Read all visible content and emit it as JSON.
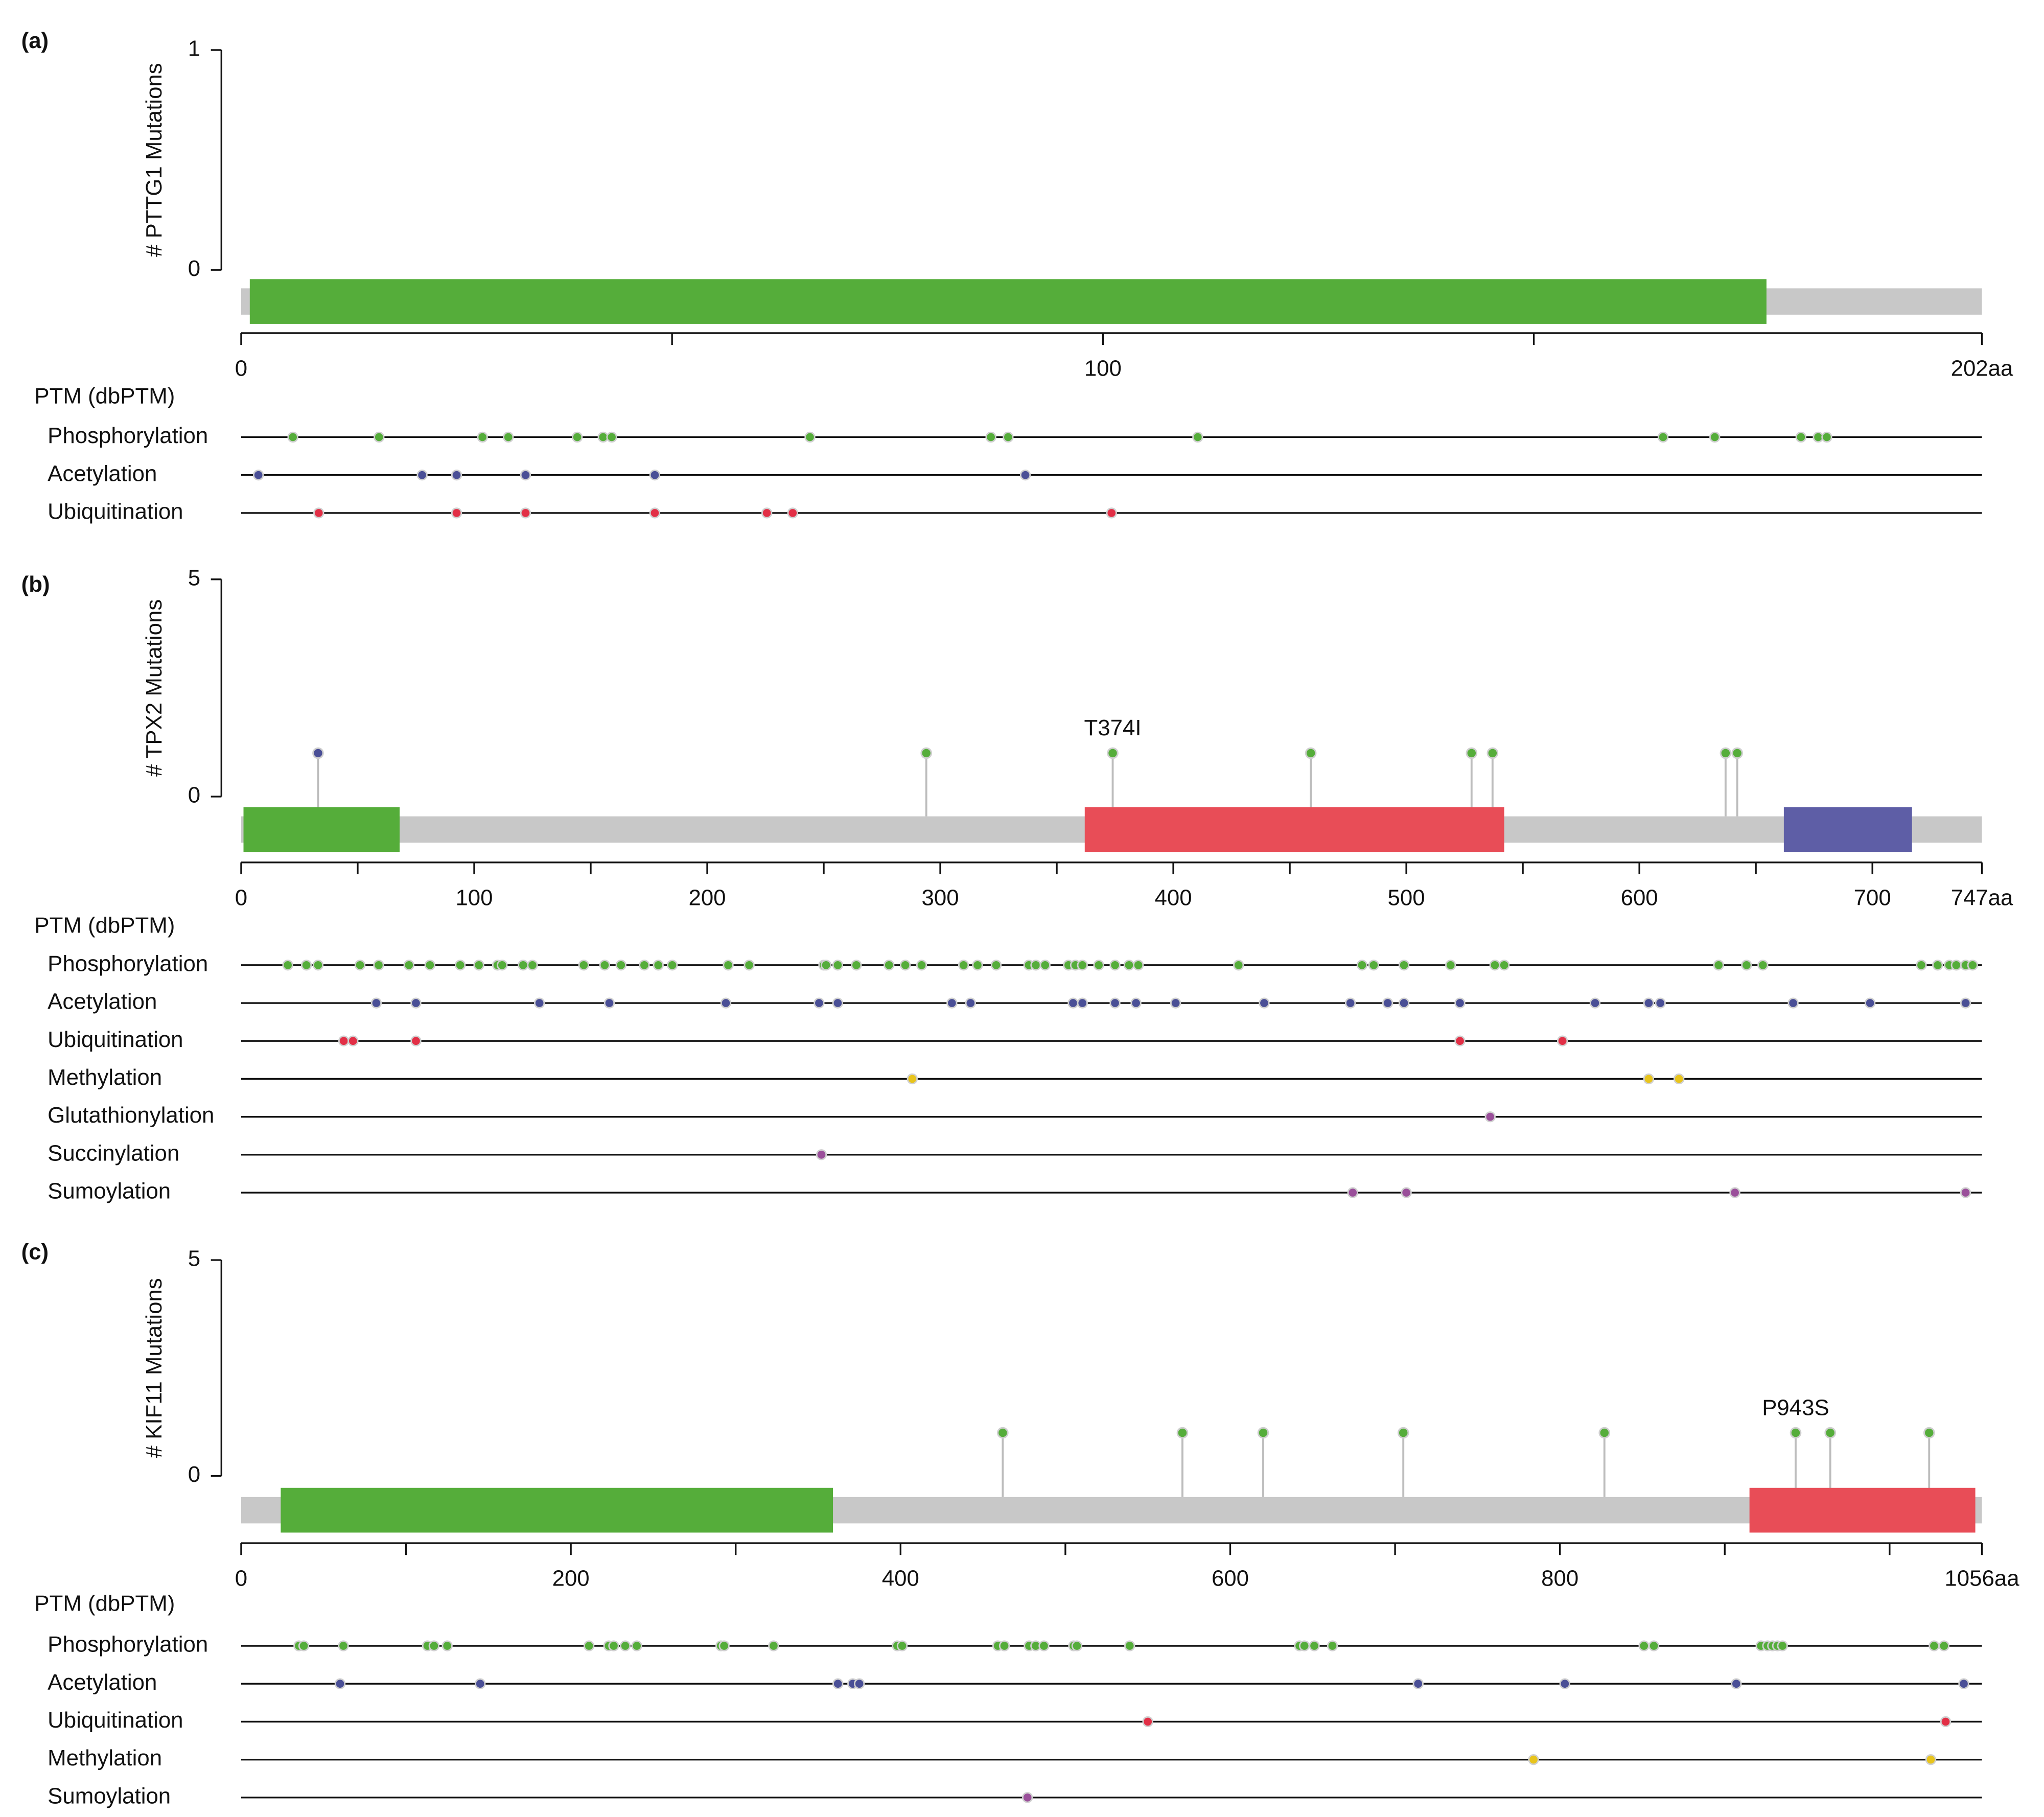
{
  "chart_data": [
    {
      "type": "lollipop",
      "panel_label": "(a)",
      "y_label": "# PTTG1 Mutations",
      "ylim": [
        0,
        1
      ],
      "yticks": [
        0,
        1
      ],
      "xlim": [
        0,
        202
      ],
      "xticks": [
        0,
        100,
        {
          "value": 202,
          "label": "202aa"
        }
      ],
      "xminorticks": [
        50,
        150
      ],
      "protein_color": "#c8c8c8",
      "domains": [
        {
          "start": 1,
          "end": 177,
          "color": "#55ad3a"
        }
      ],
      "mutations": [],
      "ptm_title": "PTM (dbPTM)",
      "ptm": [
        {
          "name": "Phosphorylation",
          "color": "#55ad3a",
          "positions": [
            6,
            16,
            28,
            31,
            39,
            42,
            43,
            66,
            87,
            89,
            111,
            165,
            171,
            181,
            183,
            184
          ]
        },
        {
          "name": "Acetylation",
          "color": "#4a4f96",
          "positions": [
            2,
            21,
            25,
            33,
            48,
            91
          ]
        },
        {
          "name": "Ubiquitination",
          "color": "#e22f46",
          "positions": [
            9,
            25,
            33,
            48,
            61,
            64,
            101
          ]
        }
      ]
    },
    {
      "type": "lollipop",
      "panel_label": "(b)",
      "y_label": "# TPX2 Mutations",
      "ylim": [
        0,
        5
      ],
      "yticks": [
        0,
        5
      ],
      "xlim": [
        0,
        747
      ],
      "xticks": [
        0,
        100,
        200,
        300,
        400,
        500,
        600,
        700,
        {
          "value": 747,
          "label": "747aa"
        }
      ],
      "xminorticks": [
        50,
        150,
        250,
        350,
        450,
        550,
        650
      ],
      "protein_color": "#c8c8c8",
      "domains": [
        {
          "start": 1,
          "end": 68,
          "color": "#55ad3a"
        },
        {
          "start": 362,
          "end": 542,
          "color": "#e84d57"
        },
        {
          "start": 662,
          "end": 717,
          "color": "#5e5ea6"
        }
      ],
      "mutations": [
        {
          "position": 33,
          "count": 1,
          "color": "#4a4f96"
        },
        {
          "position": 294,
          "count": 1,
          "color": "#55ad3a"
        },
        {
          "position": 374,
          "count": 1,
          "color": "#55ad3a",
          "label": "T374I"
        },
        {
          "position": 459,
          "count": 1,
          "color": "#55ad3a"
        },
        {
          "position": 528,
          "count": 1,
          "color": "#55ad3a"
        },
        {
          "position": 537,
          "count": 1,
          "color": "#55ad3a"
        },
        {
          "position": 637,
          "count": 1,
          "color": "#55ad3a"
        },
        {
          "position": 642,
          "count": 1,
          "color": "#55ad3a"
        }
      ],
      "ptm_title": "PTM (dbPTM)",
      "ptm": [
        {
          "name": "Phosphorylation",
          "color": "#55ad3a",
          "positions": [
            20,
            28,
            33,
            51,
            59,
            72,
            81,
            94,
            102,
            110,
            112,
            121,
            125,
            147,
            156,
            163,
            173,
            179,
            185,
            209,
            218,
            250,
            251,
            256,
            264,
            278,
            285,
            292,
            310,
            316,
            324,
            338,
            341,
            345,
            355,
            358,
            361,
            368,
            375,
            381,
            385,
            428,
            481,
            486,
            499,
            519,
            538,
            542,
            634,
            646,
            653,
            721,
            728,
            733,
            736,
            740,
            743
          ]
        },
        {
          "name": "Acetylation",
          "color": "#4a4f96",
          "positions": [
            58,
            75,
            128,
            158,
            208,
            248,
            256,
            305,
            313,
            357,
            361,
            375,
            384,
            401,
            439,
            476,
            492,
            499,
            523,
            581,
            604,
            609,
            666,
            699,
            740
          ]
        },
        {
          "name": "Ubiquitination",
          "color": "#e22f46",
          "positions": [
            44,
            48,
            75,
            523,
            567
          ]
        },
        {
          "name": "Methylation",
          "color": "#e8c41c",
          "positions": [
            288,
            604,
            617
          ]
        },
        {
          "name": "Glutathionylation",
          "color": "#9a4f9a",
          "positions": [
            536
          ]
        },
        {
          "name": "Succinylation",
          "color": "#9a4f9a",
          "positions": [
            249
          ]
        },
        {
          "name": "Sumoylation",
          "color": "#9a4f9a",
          "positions": [
            477,
            500,
            641,
            740
          ]
        }
      ]
    },
    {
      "type": "lollipop",
      "panel_label": "(c)",
      "y_label": "# KIF11 Mutations",
      "ylim": [
        0,
        5
      ],
      "yticks": [
        0,
        5
      ],
      "xlim": [
        0,
        1056
      ],
      "xticks": [
        0,
        200,
        400,
        600,
        800,
        {
          "value": 1056,
          "label": "1056aa"
        }
      ],
      "xminorticks": [
        100,
        300,
        500,
        700,
        900,
        1000
      ],
      "protein_color": "#c8c8c8",
      "domains": [
        {
          "start": 24,
          "end": 359,
          "color": "#55ad3a"
        },
        {
          "start": 915,
          "end": 1052,
          "color": "#e84d57"
        }
      ],
      "mutations": [
        {
          "position": 462,
          "count": 1,
          "color": "#55ad3a"
        },
        {
          "position": 571,
          "count": 1,
          "color": "#55ad3a"
        },
        {
          "position": 620,
          "count": 1,
          "color": "#55ad3a"
        },
        {
          "position": 705,
          "count": 1,
          "color": "#55ad3a"
        },
        {
          "position": 827,
          "count": 1,
          "color": "#55ad3a"
        },
        {
          "position": 943,
          "count": 1,
          "color": "#55ad3a",
          "label": "P943S"
        },
        {
          "position": 964,
          "count": 1,
          "color": "#55ad3a"
        },
        {
          "position": 1024,
          "count": 1,
          "color": "#55ad3a"
        }
      ],
      "ptm_title": "PTM (dbPTM)",
      "ptm": [
        {
          "name": "Phosphorylation",
          "color": "#55ad3a",
          "positions": [
            35,
            38,
            62,
            113,
            117,
            125,
            211,
            223,
            226,
            233,
            240,
            291,
            293,
            323,
            398,
            401,
            459,
            463,
            478,
            482,
            487,
            505,
            507,
            539,
            642,
            645,
            651,
            662,
            851,
            857,
            922,
            926,
            929,
            932,
            935,
            1027,
            1033
          ]
        },
        {
          "name": "Acetylation",
          "color": "#4a4f96",
          "positions": [
            60,
            145,
            362,
            371,
            375,
            714,
            803,
            907,
            1045
          ]
        },
        {
          "name": "Ubiquitination",
          "color": "#e22f46",
          "positions": [
            550,
            1034
          ]
        },
        {
          "name": "Methylation",
          "color": "#e8c41c",
          "positions": [
            784,
            1025
          ]
        },
        {
          "name": "Sumoylation",
          "color": "#9a4f9a",
          "positions": [
            477
          ]
        }
      ]
    }
  ]
}
